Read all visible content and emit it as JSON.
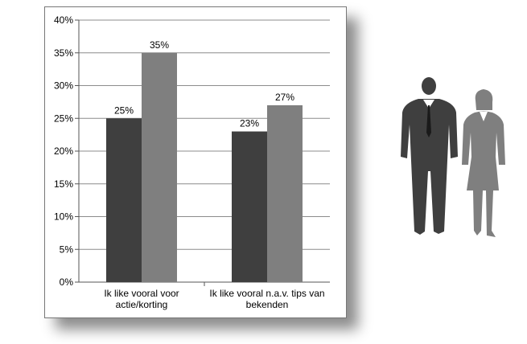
{
  "chart_data": {
    "type": "bar",
    "categories": [
      "Ik like vooral voor actie/korting",
      "Ik like vooral n.a.v. tips van bekenden"
    ],
    "category_lines": [
      [
        "Ik like vooral voor",
        "actie/korting"
      ],
      [
        "Ik like vooral n.a.v. tips van",
        "bekenden"
      ]
    ],
    "series": [
      {
        "values": [
          25,
          23
        ],
        "labels": [
          "25%",
          "23%"
        ],
        "color": "#3f3f3f"
      },
      {
        "values": [
          35,
          27
        ],
        "labels": [
          "35%",
          "27%"
        ],
        "color": "#7f7f7f"
      }
    ],
    "y_ticks": [
      "0%",
      "5%",
      "10%",
      "15%",
      "20%",
      "25%",
      "30%",
      "35%",
      "40%"
    ],
    "ylim": [
      0,
      40
    ],
    "grid": true,
    "title": "",
    "xlabel": "",
    "ylabel": ""
  },
  "legend_icons": [
    {
      "name": "man-icon",
      "color": "#3f3f3f"
    },
    {
      "name": "woman-icon",
      "color": "#7f7f7f"
    }
  ]
}
